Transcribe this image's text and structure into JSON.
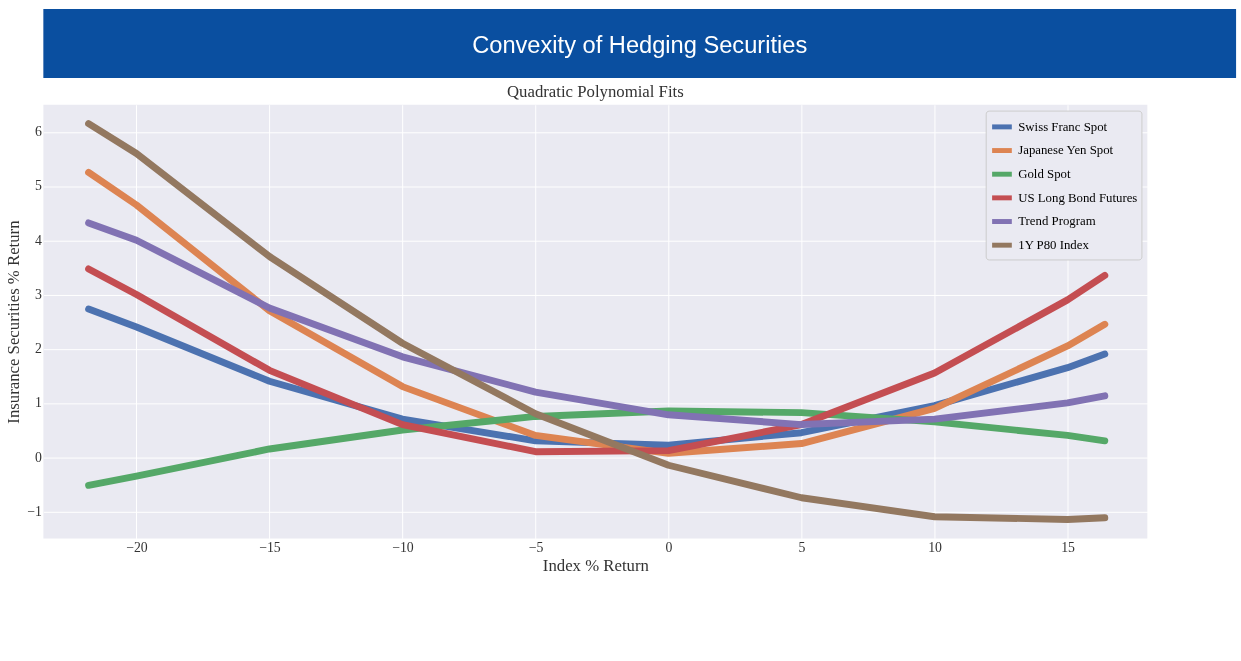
{
  "chart_data": {
    "type": "line",
    "title": "Convexity of Hedging Securities",
    "subtitle": "Quadratic Polynomial Fits",
    "xlabel": "Index % Return",
    "ylabel": "Insurance Securities % Return",
    "x": [
      -21.8,
      -20,
      -15,
      -10,
      -5,
      0,
      5,
      10,
      15,
      16.4
    ],
    "series": [
      {
        "name": "Swiss Franc Spot",
        "color": "#4c72b0",
        "values": [
          2.73,
          2.4,
          1.4,
          0.7,
          0.3,
          0.22,
          0.45,
          0.95,
          1.65,
          1.9
        ]
      },
      {
        "name": "Japanese Yen Spot",
        "color": "#dd8452",
        "values": [
          5.25,
          4.65,
          2.7,
          1.3,
          0.4,
          0.07,
          0.25,
          0.9,
          2.05,
          2.45
        ]
      },
      {
        "name": "Gold Spot",
        "color": "#55a868",
        "values": [
          -0.52,
          -0.35,
          0.15,
          0.5,
          0.75,
          0.85,
          0.82,
          0.65,
          0.4,
          0.3
        ]
      },
      {
        "name": "US Long Bond Futures",
        "color": "#c44e52",
        "values": [
          3.47,
          3.0,
          1.6,
          0.6,
          0.1,
          0.12,
          0.6,
          1.55,
          2.9,
          3.35
        ]
      },
      {
        "name": "Trend Program",
        "color": "#8172b3",
        "values": [
          4.32,
          4.0,
          2.75,
          1.85,
          1.2,
          0.78,
          0.6,
          0.7,
          1.0,
          1.13
        ]
      },
      {
        "name": "1Y P80 Index",
        "color": "#937860",
        "values": [
          6.15,
          5.6,
          3.7,
          2.1,
          0.8,
          -0.15,
          -0.75,
          -1.1,
          -1.15,
          -1.12
        ]
      }
    ],
    "xlim": [
      -23.5,
      18
    ],
    "xticks": [
      -20,
      -15,
      -10,
      -5,
      0,
      5,
      10,
      15
    ],
    "ylim": [
      -1.5,
      6.5
    ],
    "yticks": [
      -1,
      0,
      1,
      2,
      3,
      4,
      5,
      6
    ],
    "grid": true,
    "legend": "top right",
    "marker": "none",
    "line_style": "solid"
  }
}
